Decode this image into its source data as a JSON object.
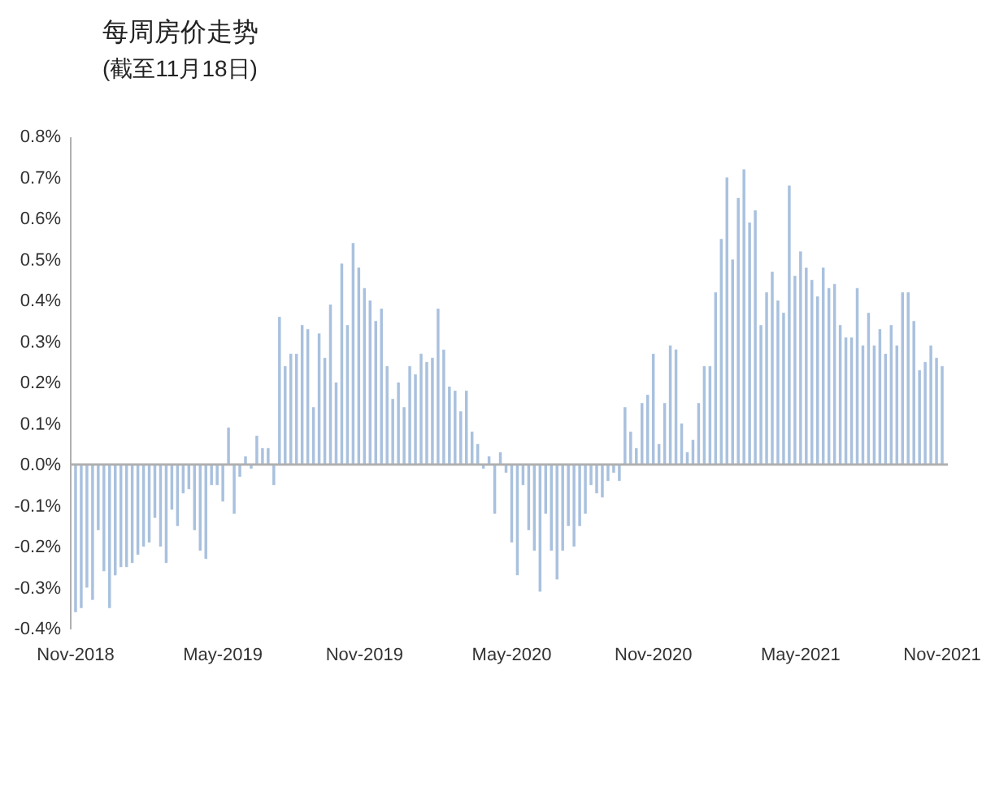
{
  "chart_data": {
    "type": "bar",
    "title": "每周房价走势",
    "subtitle": "(截至11月18日)",
    "categories": [
      "Nov-2018",
      null,
      null,
      null,
      null,
      null,
      null,
      null,
      null,
      null,
      null,
      null,
      null,
      null,
      null,
      null,
      null,
      null,
      null,
      null,
      null,
      null,
      null,
      null,
      null,
      null,
      "May-2019",
      null,
      null,
      null,
      null,
      null,
      null,
      null,
      null,
      null,
      null,
      null,
      null,
      null,
      null,
      null,
      null,
      null,
      null,
      null,
      null,
      null,
      null,
      null,
      null,
      "Nov-2019",
      null,
      null,
      null,
      null,
      null,
      null,
      null,
      null,
      null,
      null,
      null,
      null,
      null,
      null,
      null,
      null,
      null,
      null,
      null,
      null,
      null,
      null,
      null,
      null,
      null,
      "May-2020",
      null,
      null,
      null,
      null,
      null,
      null,
      null,
      null,
      null,
      null,
      null,
      null,
      null,
      null,
      null,
      null,
      null,
      null,
      null,
      null,
      null,
      null,
      null,
      null,
      "Nov-2020",
      null,
      null,
      null,
      null,
      null,
      null,
      null,
      null,
      null,
      null,
      null,
      null,
      null,
      null,
      null,
      null,
      null,
      null,
      null,
      null,
      null,
      null,
      null,
      null,
      null,
      "May-2021",
      null,
      null,
      null,
      null,
      null,
      null,
      null,
      null,
      null,
      null,
      null,
      null,
      null,
      null,
      null,
      null,
      null,
      null,
      null,
      null,
      null,
      null,
      null,
      null,
      "Nov-2021"
    ],
    "values": [
      -0.36,
      -0.35,
      -0.3,
      -0.33,
      -0.16,
      -0.26,
      -0.35,
      -0.27,
      -0.25,
      -0.25,
      -0.24,
      -0.22,
      -0.2,
      -0.19,
      -0.13,
      -0.2,
      -0.24,
      -0.11,
      -0.15,
      -0.07,
      -0.06,
      -0.16,
      -0.21,
      -0.23,
      -0.05,
      -0.05,
      -0.09,
      0.09,
      -0.12,
      -0.03,
      0.02,
      -0.01,
      0.07,
      0.04,
      0.04,
      -0.05,
      0.36,
      0.24,
      0.27,
      0.27,
      0.34,
      0.33,
      0.14,
      0.32,
      0.26,
      0.39,
      0.2,
      0.49,
      0.34,
      0.54,
      0.48,
      0.43,
      0.4,
      0.35,
      0.38,
      0.24,
      0.16,
      0.2,
      0.14,
      0.24,
      0.22,
      0.27,
      0.25,
      0.26,
      0.38,
      0.28,
      0.19,
      0.18,
      0.13,
      0.18,
      0.08,
      0.05,
      -0.01,
      0.02,
      -0.12,
      0.03,
      -0.02,
      -0.19,
      -0.27,
      -0.05,
      -0.16,
      -0.21,
      -0.31,
      -0.12,
      -0.21,
      -0.28,
      -0.21,
      -0.15,
      -0.2,
      -0.15,
      -0.12,
      -0.05,
      -0.07,
      -0.08,
      -0.04,
      -0.02,
      -0.04,
      0.14,
      0.08,
      0.04,
      0.15,
      0.17,
      0.27,
      0.05,
      0.15,
      0.29,
      0.28,
      0.1,
      0.03,
      0.06,
      0.15,
      0.24,
      0.24,
      0.42,
      0.55,
      0.7,
      0.5,
      0.65,
      0.72,
      0.59,
      0.62,
      0.34,
      0.42,
      0.47,
      0.4,
      0.37,
      0.68,
      0.46,
      0.52,
      0.48,
      0.45,
      0.41,
      0.48,
      0.43,
      0.44,
      0.34,
      0.31,
      0.31,
      0.43,
      0.29,
      0.37,
      0.29,
      0.33,
      0.27,
      0.34,
      0.29,
      0.42,
      0.42,
      0.35,
      0.23,
      0.25,
      0.29,
      0.26,
      0.24
    ],
    "color": "#a9c1de",
    "ylim": [
      -0.4,
      0.8
    ],
    "yticks": [
      {
        "value": -0.4,
        "label": "-0.4%"
      },
      {
        "value": -0.3,
        "label": "-0.3%"
      },
      {
        "value": -0.2,
        "label": "-0.2%"
      },
      {
        "value": -0.1,
        "label": "-0.1%"
      },
      {
        "value": 0,
        "label": "0.0%"
      },
      {
        "value": 0.1,
        "label": "0.1%"
      },
      {
        "value": 0.2,
        "label": "0.2%"
      },
      {
        "value": 0.3,
        "label": "0.3%"
      },
      {
        "value": 0.4,
        "label": "0.4%"
      },
      {
        "value": 0.5,
        "label": "0.5%"
      },
      {
        "value": 0.6,
        "label": "0.6%"
      },
      {
        "value": 0.7,
        "label": "0.7%"
      },
      {
        "value": 0.8,
        "label": "0.8%"
      }
    ],
    "ref_lines": [
      {
        "axis": "y",
        "value": 0,
        "color": "#b0b0b0"
      }
    ],
    "grid": false
  }
}
